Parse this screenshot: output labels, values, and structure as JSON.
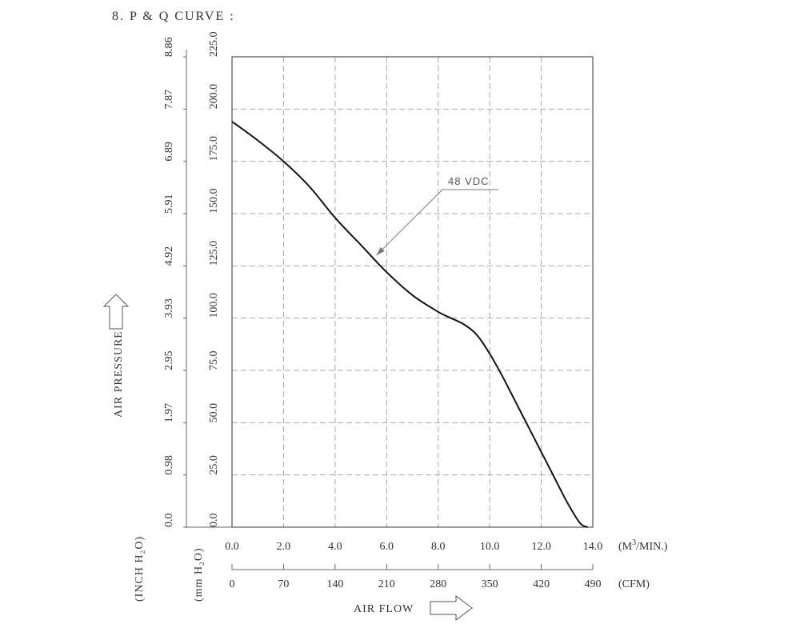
{
  "title": "8. P & Q CURVE :",
  "chart_data": {
    "type": "line",
    "title": "8. P & Q CURVE :",
    "x_axis": {
      "label": "AIR FLOW",
      "primary_unit": "(M³/MIN.)",
      "primary_unit_base": "(M",
      "primary_unit_sup": "3",
      "primary_unit_rest": "/MIN.)",
      "primary_ticks": [
        "0.0",
        "2.0",
        "4.0",
        "6.0",
        "8.0",
        "10.0",
        "12.0",
        "14.0"
      ],
      "primary_lim": [
        0,
        14
      ],
      "secondary_unit": "(CFM)",
      "secondary_ticks": [
        "0",
        "70",
        "140",
        "210",
        "280",
        "350",
        "420",
        "490"
      ]
    },
    "y_axis": {
      "label": "AIR PRESSURE",
      "primary_unit": "(mm H₂O)",
      "primary_ticks": [
        "0.0",
        "25.0",
        "50.0",
        "75.0",
        "100.0",
        "125.0",
        "150.0",
        "175.0",
        "200.0",
        "225.0"
      ],
      "primary_lim": [
        0,
        225
      ],
      "secondary_unit": "(INCH H₂O)",
      "secondary_ticks": [
        "0.0",
        "0.98",
        "1.97",
        "2.95",
        "3.93",
        "4.92",
        "5.91",
        "6.89",
        "7.87",
        "8.86"
      ]
    },
    "grid": true,
    "grid_style": "dashed",
    "series": [
      {
        "name": "48 VDC",
        "color": "#111111",
        "x": [
          0,
          1.0,
          2.0,
          3.0,
          4.0,
          5.0,
          6.0,
          7.0,
          8.0,
          8.5,
          9.0,
          9.5,
          10.0,
          10.5,
          11.0,
          11.5,
          12.0,
          12.5,
          13.0,
          13.5,
          13.8
        ],
        "y": [
          194,
          185,
          175,
          163,
          148,
          135,
          122,
          111,
          103,
          100,
          97,
          92,
          83,
          72,
          60,
          48,
          36,
          24,
          12,
          2,
          0
        ]
      }
    ],
    "annotation": {
      "text": "48 VDC",
      "x": 5.6,
      "y": 130
    }
  }
}
